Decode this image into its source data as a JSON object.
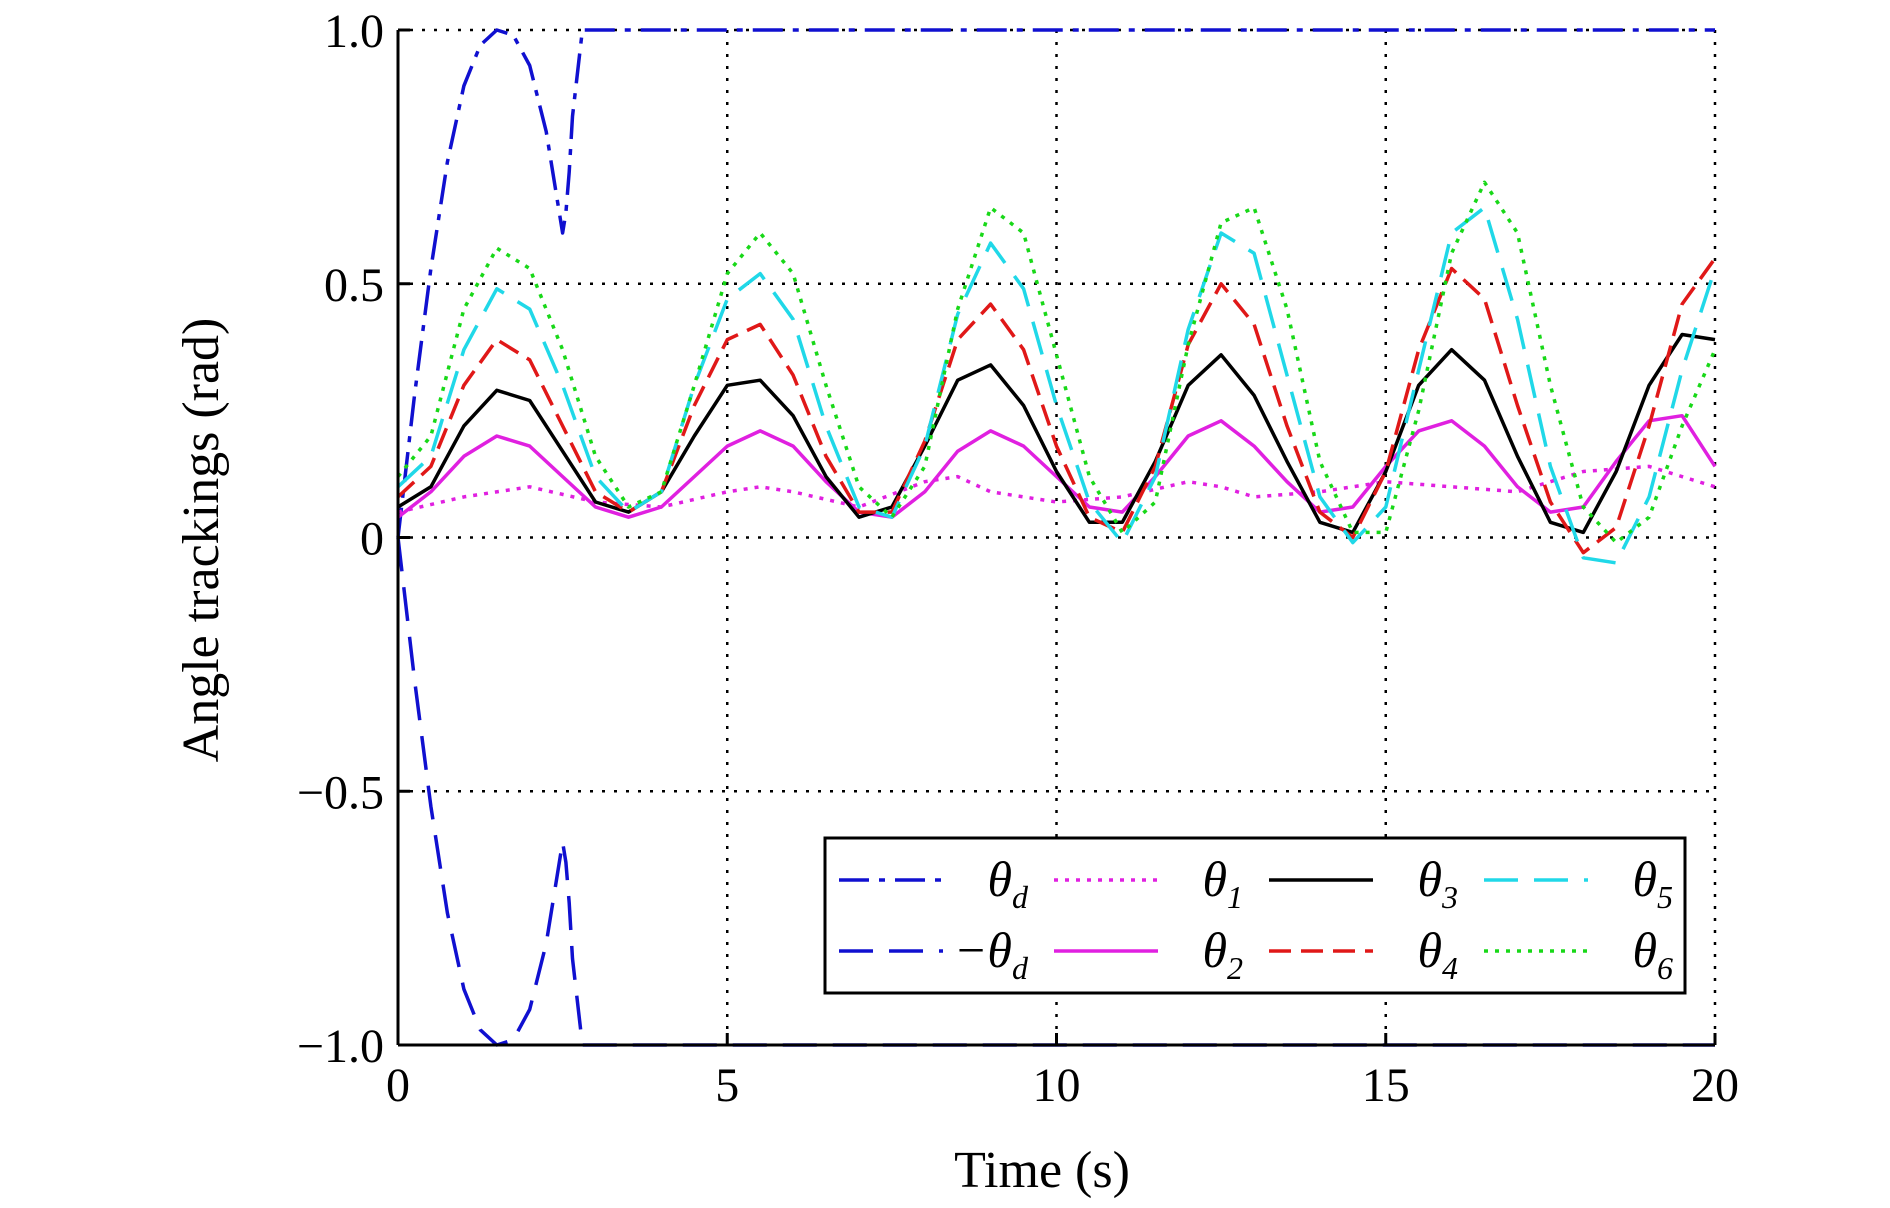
{
  "chart_data": {
    "type": "line",
    "title": "",
    "xlabel": "Time (s)",
    "ylabel": "Angle trackings (rad)",
    "xlim": [
      0,
      20
    ],
    "ylim": [
      -1.0,
      1.0
    ],
    "xticks": [
      0,
      5,
      10,
      15,
      20
    ],
    "xtick_labels": [
      "0",
      "5",
      "10",
      "15",
      "20"
    ],
    "yticks": [
      -1.0,
      -0.5,
      0,
      0.5,
      1.0
    ],
    "ytick_labels": [
      "−1.0",
      "−0.5",
      "0",
      "0.5",
      "1.0"
    ],
    "grid": true,
    "legend_position": "bottom-right",
    "series": [
      {
        "name": "θd",
        "label_main": "θ",
        "label_sub": "d",
        "label_prefix": "",
        "color": "#1010d0",
        "dash": "dash-dot",
        "x": [
          0,
          0.25,
          0.5,
          0.75,
          1.0,
          1.25,
          1.5,
          1.75,
          2.0,
          2.25,
          2.5,
          2.55,
          2.6,
          2.65,
          2.8,
          3.0,
          20
        ],
        "y": [
          0,
          0.28,
          0.53,
          0.74,
          0.89,
          0.97,
          1.0,
          0.99,
          0.93,
          0.8,
          0.6,
          0.64,
          0.72,
          0.83,
          1.0,
          1.0,
          1.0
        ]
      },
      {
        "name": "−θd",
        "label_main": "θ",
        "label_sub": "d",
        "label_prefix": "−",
        "color": "#1010d0",
        "dash": "long-dash",
        "x": [
          0,
          0.25,
          0.5,
          0.75,
          1.0,
          1.25,
          1.5,
          1.75,
          2.0,
          2.25,
          2.5,
          2.55,
          2.6,
          2.65,
          2.8,
          3.0,
          20
        ],
        "y": [
          0,
          -0.28,
          -0.53,
          -0.74,
          -0.89,
          -0.97,
          -1.0,
          -0.99,
          -0.93,
          -0.8,
          -0.6,
          -0.64,
          -0.72,
          -0.83,
          -1.0,
          -1.0,
          -1.0
        ]
      },
      {
        "name": "θ1",
        "label_main": "θ",
        "label_sub": "1",
        "label_prefix": "",
        "color": "#e020e0",
        "dash": "dot",
        "x": [
          0,
          1,
          2,
          3,
          4,
          5,
          5.5,
          6,
          7,
          8,
          8.5,
          9,
          10,
          11,
          12,
          12.5,
          13,
          14,
          15,
          16,
          17,
          18,
          19,
          20
        ],
        "y": [
          0.05,
          0.08,
          0.1,
          0.07,
          0.06,
          0.09,
          0.1,
          0.09,
          0.06,
          0.11,
          0.12,
          0.09,
          0.07,
          0.08,
          0.11,
          0.1,
          0.08,
          0.09,
          0.11,
          0.1,
          0.09,
          0.13,
          0.14,
          0.1
        ]
      },
      {
        "name": "θ2",
        "label_main": "θ",
        "label_sub": "2",
        "label_prefix": "",
        "color": "#e020e0",
        "dash": "solid",
        "x": [
          0,
          0.5,
          1,
          1.5,
          2,
          2.5,
          3,
          3.5,
          4,
          4.5,
          5,
          5.5,
          6,
          6.5,
          7,
          7.5,
          8,
          8.5,
          9,
          9.5,
          10,
          10.5,
          11,
          11.5,
          12,
          12.5,
          13,
          13.5,
          14,
          14.5,
          15,
          15.5,
          16,
          16.5,
          17,
          17.5,
          18,
          18.5,
          19,
          19.5,
          20
        ],
        "y": [
          0.04,
          0.09,
          0.16,
          0.2,
          0.18,
          0.12,
          0.06,
          0.04,
          0.06,
          0.12,
          0.18,
          0.21,
          0.18,
          0.11,
          0.05,
          0.04,
          0.09,
          0.17,
          0.21,
          0.18,
          0.12,
          0.06,
          0.05,
          0.12,
          0.2,
          0.23,
          0.18,
          0.11,
          0.05,
          0.06,
          0.14,
          0.21,
          0.23,
          0.18,
          0.1,
          0.05,
          0.06,
          0.15,
          0.23,
          0.24,
          0.14
        ]
      },
      {
        "name": "θ3",
        "label_main": "θ",
        "label_sub": "3",
        "label_prefix": "",
        "color": "#000000",
        "dash": "solid",
        "x": [
          0,
          0.5,
          1,
          1.5,
          2,
          2.5,
          3,
          3.5,
          4,
          4.5,
          5,
          5.5,
          6,
          6.5,
          7,
          7.5,
          8,
          8.5,
          9,
          9.5,
          10,
          10.5,
          11,
          11.5,
          12,
          12.5,
          13,
          13.5,
          14,
          14.5,
          15,
          15.5,
          16,
          16.5,
          17,
          17.5,
          18,
          18.5,
          19,
          19.5,
          20
        ],
        "y": [
          0.06,
          0.1,
          0.22,
          0.29,
          0.27,
          0.17,
          0.07,
          0.05,
          0.09,
          0.2,
          0.3,
          0.31,
          0.24,
          0.12,
          0.04,
          0.06,
          0.18,
          0.31,
          0.34,
          0.26,
          0.13,
          0.03,
          0.03,
          0.15,
          0.3,
          0.36,
          0.28,
          0.15,
          0.03,
          0.01,
          0.13,
          0.3,
          0.37,
          0.31,
          0.16,
          0.03,
          0.01,
          0.13,
          0.3,
          0.4,
          0.39
        ]
      },
      {
        "name": "θ4",
        "label_main": "θ",
        "label_sub": "4",
        "label_prefix": "",
        "color": "#e01818",
        "dash": "dash",
        "x": [
          0,
          0.5,
          1,
          1.5,
          2,
          2.5,
          3,
          3.5,
          4,
          4.5,
          5,
          5.5,
          6,
          6.5,
          7,
          7.5,
          8,
          8.5,
          9,
          9.5,
          10,
          10.5,
          11,
          11.5,
          12,
          12.5,
          13,
          13.5,
          14,
          14.5,
          15,
          15.5,
          16,
          16.5,
          17,
          17.5,
          18,
          18.5,
          19,
          19.5,
          20
        ],
        "y": [
          0.08,
          0.14,
          0.3,
          0.39,
          0.35,
          0.22,
          0.09,
          0.05,
          0.09,
          0.26,
          0.39,
          0.42,
          0.32,
          0.16,
          0.05,
          0.05,
          0.19,
          0.39,
          0.46,
          0.37,
          0.18,
          0.04,
          0.01,
          0.14,
          0.38,
          0.5,
          0.42,
          0.22,
          0.05,
          0.0,
          0.13,
          0.37,
          0.53,
          0.47,
          0.26,
          0.07,
          -0.03,
          0.02,
          0.22,
          0.46,
          0.55
        ]
      },
      {
        "name": "θ5",
        "label_main": "θ",
        "label_sub": "5",
        "label_prefix": "",
        "color": "#20d8e8",
        "dash": "long-dash",
        "x": [
          0,
          0.5,
          1,
          1.5,
          2,
          2.5,
          3,
          3.5,
          4,
          4.5,
          5,
          5.5,
          6,
          6.5,
          7,
          7.5,
          8,
          8.5,
          9,
          9.5,
          10,
          10.5,
          11,
          11.5,
          12,
          12.5,
          13,
          13.5,
          14,
          14.5,
          15,
          15.5,
          16,
          16.5,
          17,
          17.5,
          18,
          18.5,
          19,
          19.5,
          20
        ],
        "y": [
          0.1,
          0.16,
          0.37,
          0.49,
          0.45,
          0.3,
          0.12,
          0.05,
          0.09,
          0.3,
          0.47,
          0.52,
          0.43,
          0.22,
          0.06,
          0.04,
          0.18,
          0.44,
          0.58,
          0.49,
          0.26,
          0.07,
          -0.01,
          0.12,
          0.41,
          0.6,
          0.56,
          0.32,
          0.08,
          -0.01,
          0.06,
          0.33,
          0.6,
          0.65,
          0.43,
          0.14,
          -0.04,
          -0.05,
          0.08,
          0.33,
          0.53
        ]
      },
      {
        "name": "θ6",
        "label_main": "θ",
        "label_sub": "6",
        "label_prefix": "",
        "color": "#18d818",
        "dash": "dot",
        "x": [
          0,
          0.5,
          1,
          1.5,
          2,
          2.5,
          3,
          3.5,
          4,
          4.5,
          5,
          5.5,
          6,
          6.5,
          7,
          7.5,
          8,
          8.5,
          9,
          9.5,
          10,
          10.5,
          11,
          11.5,
          12,
          12.5,
          13,
          13.5,
          14,
          14.5,
          15,
          15.5,
          16,
          16.5,
          17,
          17.5,
          18,
          18.5,
          19,
          19.5,
          20
        ],
        "y": [
          0.12,
          0.2,
          0.45,
          0.57,
          0.53,
          0.37,
          0.16,
          0.06,
          0.09,
          0.3,
          0.52,
          0.6,
          0.52,
          0.3,
          0.1,
          0.04,
          0.14,
          0.45,
          0.65,
          0.6,
          0.36,
          0.12,
          0.01,
          0.07,
          0.38,
          0.62,
          0.65,
          0.45,
          0.15,
          0.01,
          0.01,
          0.25,
          0.56,
          0.7,
          0.6,
          0.3,
          0.06,
          -0.01,
          0.04,
          0.22,
          0.37
        ]
      }
    ]
  }
}
